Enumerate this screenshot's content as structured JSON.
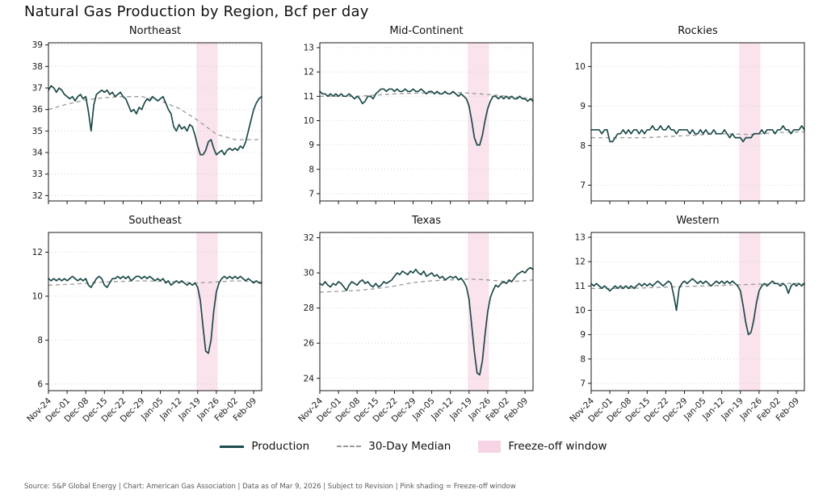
{
  "title": "Natural Gas Production by Region, Bcf per day",
  "footer": "Source: S&P Global Energy  |  Chart: American Gas Association  |  Data as of Mar 9, 2026  |  Subject to Revision  |  Pink shading = Freeze-off window",
  "legend": {
    "production": "Production",
    "median": "30-Day Median",
    "freeze": "Freeze-off window"
  },
  "colors": {
    "production": "#1d4a4a",
    "median": "#999999",
    "freeze": "#f7d4e4",
    "grid": "#cccccc",
    "spine": "#1a1a1a",
    "tick_text": "#1a1a1a"
  },
  "chart_data": {
    "type": "line",
    "title": "Natural Gas Production by Region, Bcf per day",
    "xlabel": "",
    "ylabel": "Bcf per day",
    "x_unit": "day-index from Nov-24",
    "x_range": [
      0,
      80
    ],
    "x_tick_positions": [
      0,
      7,
      14,
      21,
      28,
      35,
      42,
      49,
      56,
      63,
      70,
      77
    ],
    "x_tick_labels": [
      "Nov-24",
      "Dec-01",
      "Dec-08",
      "Dec-15",
      "Dec-22",
      "Dec-29",
      "Jan-05",
      "Jan-12",
      "Jan-19",
      "Jan-26",
      "Feb-02",
      "Feb-09"
    ],
    "freeze_window_x": [
      55.5,
      63.5
    ],
    "series_labels": [
      "Production",
      "30-Day Median"
    ],
    "grid": "horizontal-dotted",
    "legend_position": "bottom-center",
    "regions": [
      {
        "name": "Northeast",
        "ylim": [
          31.75,
          39.1
        ],
        "yticks": [
          32,
          33,
          34,
          35,
          36,
          37,
          38,
          39
        ],
        "production": [
          36.9,
          37.1,
          37.0,
          36.8,
          37.0,
          36.9,
          36.7,
          36.6,
          36.5,
          36.6,
          36.4,
          36.6,
          36.7,
          36.5,
          36.6,
          35.9,
          35.0,
          36.2,
          36.7,
          36.8,
          36.9,
          36.8,
          36.9,
          36.7,
          36.8,
          36.6,
          36.7,
          36.8,
          36.6,
          36.5,
          36.2,
          35.9,
          36.0,
          35.8,
          36.1,
          36.0,
          36.3,
          36.5,
          36.4,
          36.6,
          36.5,
          36.4,
          36.5,
          36.6,
          36.3,
          36.0,
          35.8,
          35.2,
          35.0,
          35.3,
          35.1,
          35.2,
          35.0,
          35.3,
          35.2,
          34.8,
          34.3,
          33.9,
          33.9,
          34.1,
          34.5,
          34.6,
          34.2,
          33.9,
          34.0,
          34.1,
          33.9,
          34.1,
          34.2,
          34.1,
          34.2,
          34.1,
          34.3,
          34.2,
          34.5,
          35.0,
          35.5,
          36.0,
          36.3,
          36.5,
          36.6
        ],
        "median_points": [
          [
            0,
            36.0
          ],
          [
            7,
            36.25
          ],
          [
            14,
            36.45
          ],
          [
            21,
            36.55
          ],
          [
            28,
            36.6
          ],
          [
            35,
            36.6
          ],
          [
            42,
            36.4
          ],
          [
            49,
            36.05
          ],
          [
            56,
            35.5
          ],
          [
            63,
            34.85
          ],
          [
            70,
            34.6
          ],
          [
            80,
            34.6
          ]
        ]
      },
      {
        "name": "Mid-Continent",
        "ylim": [
          6.7,
          13.2
        ],
        "yticks": [
          7,
          8,
          9,
          10,
          11,
          12,
          13
        ],
        "production": [
          11.2,
          11.1,
          11.1,
          11.0,
          11.1,
          11.0,
          11.1,
          11.0,
          11.1,
          11.0,
          11.0,
          11.1,
          11.0,
          10.9,
          11.0,
          10.9,
          10.7,
          10.8,
          11.0,
          11.0,
          10.9,
          11.1,
          11.2,
          11.3,
          11.3,
          11.2,
          11.3,
          11.3,
          11.2,
          11.3,
          11.2,
          11.2,
          11.3,
          11.2,
          11.2,
          11.3,
          11.2,
          11.2,
          11.3,
          11.2,
          11.1,
          11.2,
          11.2,
          11.1,
          11.2,
          11.1,
          11.1,
          11.2,
          11.1,
          11.1,
          11.2,
          11.1,
          11.0,
          11.1,
          11.0,
          10.9,
          10.6,
          10.0,
          9.3,
          9.0,
          9.0,
          9.4,
          10.0,
          10.5,
          10.8,
          11.0,
          11.0,
          10.9,
          11.0,
          10.9,
          11.0,
          10.9,
          11.0,
          10.9,
          10.9,
          11.0,
          10.9,
          10.9,
          10.8,
          10.9,
          10.8
        ],
        "median_points": [
          [
            0,
            11.0
          ],
          [
            14,
            11.0
          ],
          [
            28,
            11.1
          ],
          [
            42,
            11.15
          ],
          [
            53,
            11.15
          ],
          [
            60,
            11.1
          ],
          [
            66,
            11.05
          ],
          [
            70,
            11.0
          ],
          [
            80,
            10.9
          ]
        ]
      },
      {
        "name": "Rockies",
        "ylim": [
          6.6,
          10.6
        ],
        "yticks": [
          7,
          8,
          9,
          10
        ],
        "production": [
          8.4,
          8.4,
          8.4,
          8.4,
          8.3,
          8.4,
          8.4,
          8.1,
          8.1,
          8.2,
          8.3,
          8.3,
          8.4,
          8.3,
          8.4,
          8.3,
          8.4,
          8.4,
          8.3,
          8.4,
          8.3,
          8.4,
          8.4,
          8.5,
          8.4,
          8.4,
          8.5,
          8.4,
          8.4,
          8.5,
          8.4,
          8.4,
          8.3,
          8.4,
          8.4,
          8.4,
          8.4,
          8.3,
          8.4,
          8.3,
          8.3,
          8.4,
          8.3,
          8.4,
          8.3,
          8.3,
          8.4,
          8.3,
          8.3,
          8.3,
          8.4,
          8.3,
          8.2,
          8.3,
          8.2,
          8.2,
          8.2,
          8.1,
          8.2,
          8.2,
          8.2,
          8.3,
          8.3,
          8.3,
          8.4,
          8.3,
          8.4,
          8.4,
          8.4,
          8.3,
          8.4,
          8.4,
          8.5,
          8.4,
          8.4,
          8.3,
          8.4,
          8.4,
          8.4,
          8.5,
          8.4
        ],
        "median_points": [
          [
            0,
            8.2
          ],
          [
            20,
            8.2
          ],
          [
            35,
            8.25
          ],
          [
            49,
            8.3
          ],
          [
            60,
            8.28
          ],
          [
            70,
            8.33
          ],
          [
            80,
            8.35
          ]
        ]
      },
      {
        "name": "Southeast",
        "ylim": [
          5.7,
          12.9
        ],
        "yticks": [
          6,
          8,
          10,
          12
        ],
        "production": [
          10.8,
          10.7,
          10.8,
          10.7,
          10.8,
          10.7,
          10.8,
          10.7,
          10.8,
          10.9,
          10.8,
          10.7,
          10.8,
          10.7,
          10.8,
          10.5,
          10.4,
          10.6,
          10.8,
          10.9,
          10.8,
          10.5,
          10.4,
          10.6,
          10.8,
          10.8,
          10.9,
          10.8,
          10.9,
          10.8,
          10.9,
          10.7,
          10.8,
          10.9,
          10.9,
          10.8,
          10.9,
          10.8,
          10.9,
          10.8,
          10.7,
          10.8,
          10.7,
          10.8,
          10.6,
          10.7,
          10.5,
          10.6,
          10.7,
          10.6,
          10.7,
          10.6,
          10.5,
          10.6,
          10.5,
          10.6,
          10.4,
          9.8,
          8.6,
          7.5,
          7.4,
          8.0,
          9.3,
          10.2,
          10.6,
          10.8,
          10.9,
          10.8,
          10.9,
          10.8,
          10.9,
          10.8,
          10.9,
          10.8,
          10.7,
          10.8,
          10.7,
          10.6,
          10.7,
          10.6,
          10.6
        ],
        "median_points": [
          [
            0,
            10.5
          ],
          [
            10,
            10.55
          ],
          [
            21,
            10.65
          ],
          [
            35,
            10.7
          ],
          [
            49,
            10.65
          ],
          [
            56,
            10.6
          ],
          [
            63,
            10.65
          ],
          [
            70,
            10.7
          ],
          [
            80,
            10.65
          ]
        ]
      },
      {
        "name": "Texas",
        "ylim": [
          23.3,
          32.3
        ],
        "yticks": [
          24,
          26,
          28,
          30,
          32
        ],
        "production": [
          29.4,
          29.3,
          29.5,
          29.3,
          29.2,
          29.4,
          29.3,
          29.5,
          29.4,
          29.2,
          29.0,
          29.3,
          29.5,
          29.4,
          29.3,
          29.5,
          29.6,
          29.4,
          29.5,
          29.3,
          29.2,
          29.4,
          29.2,
          29.3,
          29.5,
          29.4,
          29.5,
          29.6,
          29.8,
          30.0,
          29.9,
          30.1,
          30.0,
          29.9,
          30.1,
          30.0,
          30.2,
          30.0,
          29.9,
          30.1,
          29.8,
          29.9,
          30.0,
          29.8,
          29.9,
          29.7,
          29.8,
          29.6,
          29.7,
          29.8,
          29.7,
          29.8,
          29.6,
          29.7,
          29.5,
          29.2,
          28.5,
          27.0,
          25.5,
          24.3,
          24.2,
          25.0,
          26.5,
          27.8,
          28.6,
          29.0,
          29.3,
          29.2,
          29.4,
          29.5,
          29.4,
          29.6,
          29.5,
          29.7,
          29.9,
          30.0,
          30.1,
          30.0,
          30.2,
          30.3,
          30.2
        ],
        "median_points": [
          [
            0,
            28.9
          ],
          [
            7,
            28.95
          ],
          [
            14,
            29.0
          ],
          [
            21,
            29.1
          ],
          [
            28,
            29.25
          ],
          [
            35,
            29.45
          ],
          [
            42,
            29.55
          ],
          [
            49,
            29.6
          ],
          [
            56,
            29.65
          ],
          [
            63,
            29.6
          ],
          [
            70,
            29.5
          ],
          [
            77,
            29.55
          ],
          [
            80,
            29.6
          ]
        ]
      },
      {
        "name": "Western",
        "ylim": [
          6.7,
          13.2
        ],
        "yticks": [
          7,
          8,
          9,
          10,
          11,
          12,
          13
        ],
        "production": [
          11.1,
          11.0,
          11.1,
          11.0,
          10.9,
          11.0,
          10.9,
          10.8,
          10.9,
          11.0,
          10.9,
          11.0,
          10.9,
          11.0,
          10.9,
          11.0,
          10.9,
          11.0,
          11.1,
          11.0,
          11.1,
          11.0,
          11.1,
          11.0,
          11.1,
          11.2,
          11.1,
          11.0,
          11.1,
          11.2,
          11.1,
          10.6,
          10.0,
          10.9,
          11.1,
          11.2,
          11.1,
          11.2,
          11.3,
          11.2,
          11.1,
          11.2,
          11.1,
          11.2,
          11.1,
          11.0,
          11.1,
          11.2,
          11.1,
          11.2,
          11.1,
          11.2,
          11.1,
          11.2,
          11.1,
          11.0,
          10.8,
          10.2,
          9.5,
          9.0,
          9.1,
          9.6,
          10.3,
          10.8,
          11.0,
          11.1,
          11.0,
          11.1,
          11.2,
          11.1,
          11.1,
          11.0,
          11.1,
          11.0,
          10.7,
          11.0,
          11.1,
          11.0,
          11.1,
          11.0,
          11.1
        ],
        "median_points": [
          [
            0,
            10.9
          ],
          [
            14,
            10.9
          ],
          [
            28,
            10.95
          ],
          [
            42,
            11.0
          ],
          [
            56,
            11.05
          ],
          [
            70,
            11.1
          ],
          [
            80,
            11.1
          ]
        ]
      }
    ]
  }
}
